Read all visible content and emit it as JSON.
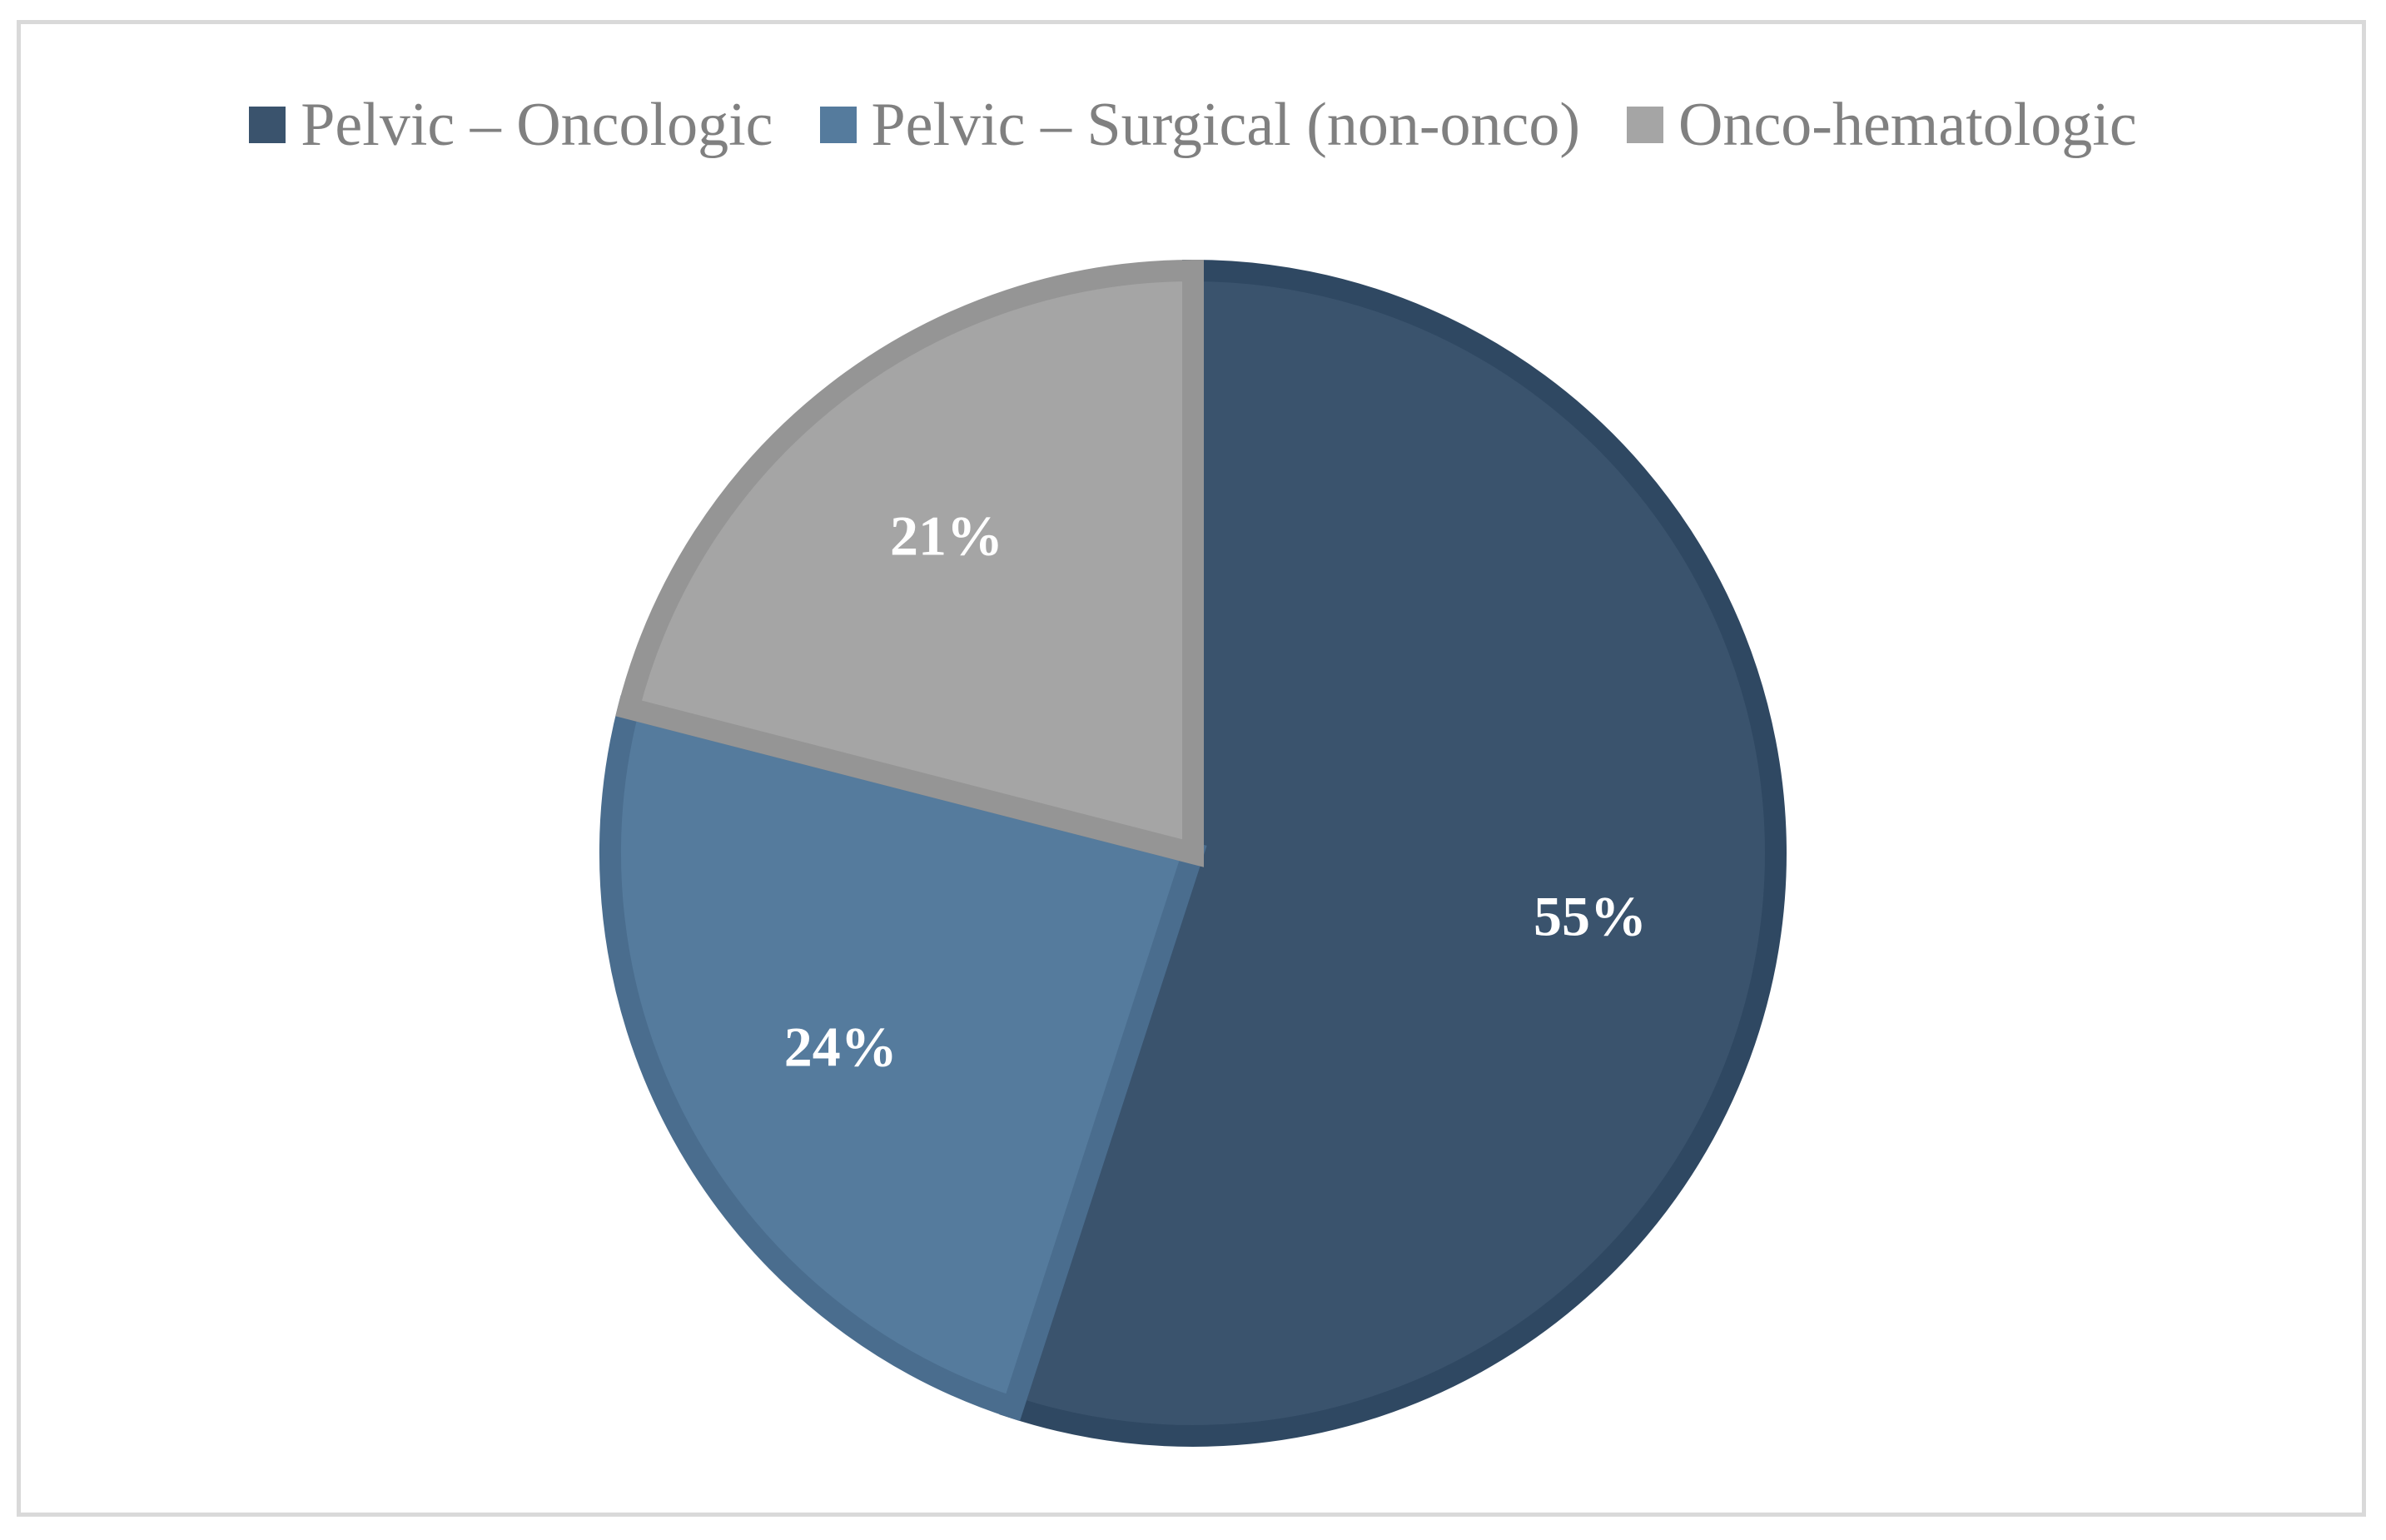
{
  "chart_data": {
    "type": "pie",
    "title": "",
    "legend_position": "top",
    "start_angle_deg": 0,
    "direction": "clockwise",
    "slices": [
      {
        "name": "Pelvic – Oncologic",
        "value": 55,
        "label": "55%",
        "color": "#3a536d",
        "stroke": "#2f4862"
      },
      {
        "name": "Pelvic – Surgical (non-onco)",
        "value": 24,
        "label": "24%",
        "color": "#557b9d",
        "stroke": "#4a6d8e"
      },
      {
        "name": "Onco-hematologic",
        "value": 21,
        "label": "21%",
        "color": "#a5a5a5",
        "stroke": "#959595"
      }
    ]
  }
}
